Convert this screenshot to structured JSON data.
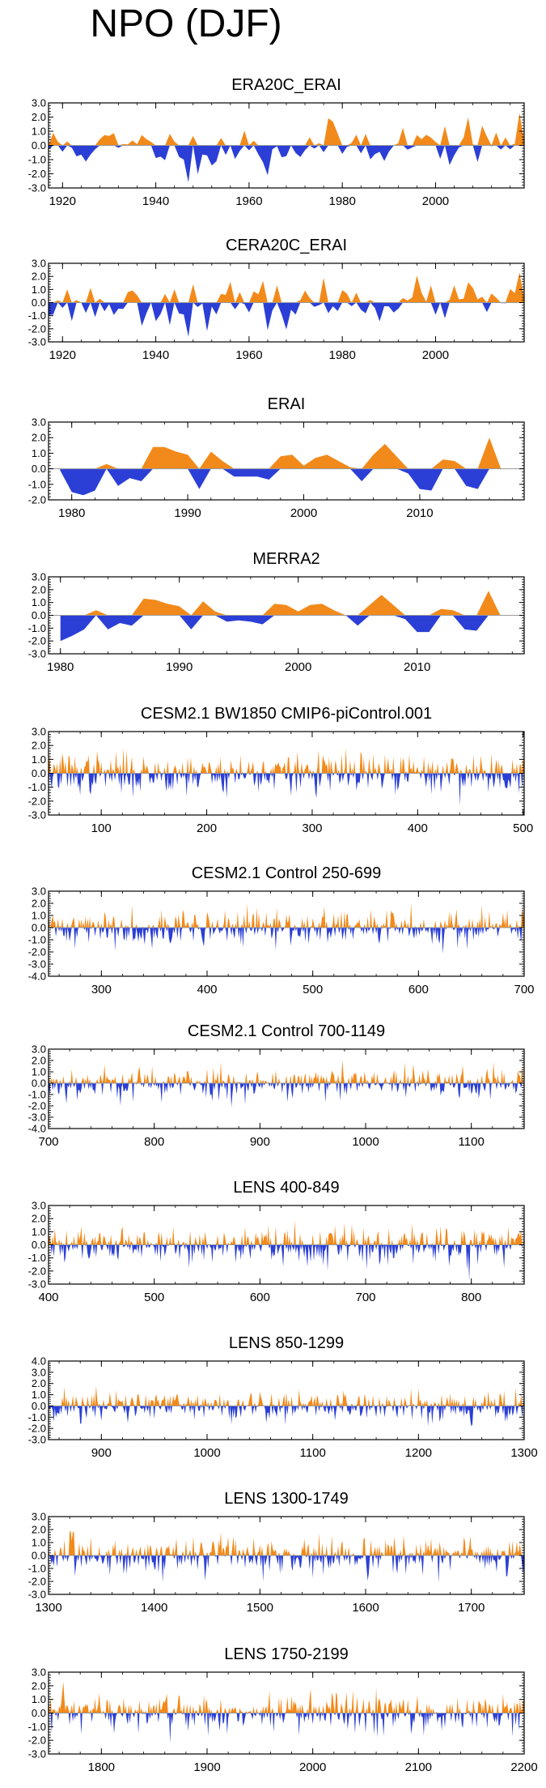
{
  "main_title": "NPO (DJF)",
  "colors": {
    "positive": "#f28a1b",
    "negative": "#2b3fd6",
    "axis": "#000000",
    "zero_line": "#9a9a9a"
  },
  "chart_data": [
    {
      "type": "area",
      "title": "ERA20C_ERAI",
      "xlim": [
        1917,
        2019
      ],
      "ylim": [
        -3.0,
        3.0
      ],
      "yticks": [
        "3.0",
        "2.0",
        "1.0",
        "0.0",
        "-1.0",
        "-2.0",
        "-3.0"
      ],
      "xticks": [
        "1920",
        "1940",
        "1960",
        "1980",
        "2000"
      ],
      "series": "annual",
      "seed": 11
    },
    {
      "type": "area",
      "title": "CERA20C_ERAI",
      "xlim": [
        1917,
        2019
      ],
      "ylim": [
        -3.0,
        3.0
      ],
      "yticks": [
        "3.0",
        "2.0",
        "1.0",
        "0.0",
        "-1.0",
        "-2.0",
        "-3.0"
      ],
      "xticks": [
        "1920",
        "1940",
        "1960",
        "1980",
        "2000"
      ],
      "series": "annual",
      "seed": 23
    },
    {
      "type": "area",
      "title": "ERAI",
      "xlim": [
        1978,
        2019
      ],
      "ylim": [
        -2.0,
        3.0
      ],
      "yticks": [
        "3.0",
        "2.0",
        "1.0",
        "0.0",
        "-1.0",
        "-2.0"
      ],
      "xticks": [
        "1980",
        "1990",
        "2000",
        "2010"
      ],
      "x": [
        1979,
        1980,
        1981,
        1982,
        1983,
        1984,
        1985,
        1986,
        1987,
        1988,
        1989,
        1990,
        1991,
        1992,
        1993,
        1994,
        1995,
        1996,
        1997,
        1998,
        1999,
        2000,
        2001,
        2002,
        2003,
        2004,
        2005,
        2006,
        2007,
        2008,
        2009,
        2010,
        2011,
        2012,
        2013,
        2014,
        2015,
        2016,
        2017
      ],
      "values": [
        -0.1,
        -1.5,
        -1.7,
        -1.4,
        0.3,
        -1.1,
        -0.6,
        -0.8,
        1.4,
        1.4,
        1.1,
        0.9,
        -1.3,
        1.1,
        0.5,
        -0.5,
        -0.5,
        -0.5,
        -0.7,
        0.8,
        0.9,
        0.2,
        0.7,
        0.9,
        0.5,
        0.1,
        -0.8,
        0.9,
        1.6,
        0.8,
        -0.3,
        -1.3,
        -1.4,
        0.6,
        0.5,
        -1.1,
        -1.3,
        2.0,
        0.0
      ]
    },
    {
      "type": "area",
      "title": "MERRA2",
      "xlim": [
        1979,
        2019
      ],
      "ylim": [
        -3.0,
        3.0
      ],
      "yticks": [
        "3.0",
        "2.0",
        "1.0",
        "0.0",
        "-1.0",
        "-2.0",
        "-3.0"
      ],
      "xticks": [
        "1980",
        "1990",
        "2000",
        "2010"
      ],
      "x": [
        1980,
        1981,
        1982,
        1983,
        1984,
        1985,
        1986,
        1987,
        1988,
        1989,
        1990,
        1991,
        1992,
        1993,
        1994,
        1995,
        1996,
        1997,
        1998,
        1999,
        2000,
        2001,
        2002,
        2003,
        2004,
        2005,
        2006,
        2007,
        2008,
        2009,
        2010,
        2011,
        2012,
        2013,
        2014,
        2015,
        2016,
        2017
      ],
      "values": [
        -2.0,
        -1.6,
        -1.1,
        0.4,
        -1.1,
        -0.6,
        -0.8,
        1.3,
        1.2,
        0.9,
        0.7,
        -1.1,
        1.1,
        0.3,
        -0.5,
        -0.4,
        -0.5,
        -0.7,
        0.9,
        0.8,
        0.3,
        0.8,
        0.9,
        0.4,
        0.0,
        -0.8,
        0.8,
        1.6,
        0.8,
        -0.3,
        -1.3,
        -1.3,
        0.5,
        0.4,
        -1.1,
        -1.2,
        1.9,
        0.0
      ]
    },
    {
      "type": "area",
      "title": "CESM2.1 BW1850 CMIP6-piControl.001",
      "xlim": [
        50,
        501
      ],
      "ylim": [
        -3.0,
        3.0
      ],
      "yticks": [
        "3.0",
        "2.0",
        "1.0",
        "0.0",
        "-1.0",
        "-2.0",
        "-3.0"
      ],
      "xticks": [
        "100",
        "200",
        "300",
        "400",
        "500"
      ],
      "series": "annual",
      "seed": 37
    },
    {
      "type": "area",
      "title": "CESM2.1 Control 250-699",
      "xlim": [
        250,
        700
      ],
      "ylim": [
        -4.0,
        3.0
      ],
      "yticks": [
        "3.0",
        "2.0",
        "1.0",
        "0.0",
        "-1.0",
        "-2.0",
        "-3.0",
        "-4.0"
      ],
      "xticks": [
        "300",
        "400",
        "500",
        "600",
        "700"
      ],
      "series": "annual",
      "seed": 41
    },
    {
      "type": "area",
      "title": "CESM2.1 Control 700-1149",
      "xlim": [
        700,
        1150
      ],
      "ylim": [
        -4.0,
        3.0
      ],
      "yticks": [
        "3.0",
        "2.0",
        "1.0",
        "0.0",
        "-1.0",
        "-2.0",
        "-3.0",
        "-4.0"
      ],
      "xticks": [
        "700",
        "800",
        "900",
        "1000",
        "1100"
      ],
      "series": "annual",
      "seed": 53
    },
    {
      "type": "area",
      "title": "LENS 400-849",
      "xlim": [
        400,
        850
      ],
      "ylim": [
        -3.0,
        3.0
      ],
      "yticks": [
        "3.0",
        "2.0",
        "1.0",
        "0.0",
        "-1.0",
        "-2.0",
        "-3.0"
      ],
      "xticks": [
        "400",
        "500",
        "600",
        "700",
        "800"
      ],
      "series": "annual",
      "seed": 61
    },
    {
      "type": "area",
      "title": "LENS 850-1299",
      "xlim": [
        850,
        1300
      ],
      "ylim": [
        -3.0,
        4.0
      ],
      "yticks": [
        "4.0",
        "3.0",
        "2.0",
        "1.0",
        "0.0",
        "-1.0",
        "-2.0",
        "-3.0"
      ],
      "xticks": [
        "900",
        "1000",
        "1100",
        "1200",
        "1300"
      ],
      "series": "annual",
      "seed": 71
    },
    {
      "type": "area",
      "title": "LENS 1300-1749",
      "xlim": [
        1300,
        1750
      ],
      "ylim": [
        -3.0,
        3.0
      ],
      "yticks": [
        "3.0",
        "2.0",
        "1.0",
        "0.0",
        "-1.0",
        "-2.0",
        "-3.0"
      ],
      "xticks": [
        "1300",
        "1400",
        "1500",
        "1600",
        "1700"
      ],
      "series": "annual",
      "seed": 83
    },
    {
      "type": "area",
      "title": "LENS 1750-2199",
      "xlim": [
        1750,
        2200
      ],
      "ylim": [
        -3.0,
        3.0
      ],
      "yticks": [
        "3.0",
        "2.0",
        "1.0",
        "0.0",
        "-1.0",
        "-2.0",
        "-3.0"
      ],
      "xticks": [
        "1800",
        "1900",
        "2000",
        "2100",
        "2200"
      ],
      "series": "annual",
      "seed": 97
    }
  ]
}
